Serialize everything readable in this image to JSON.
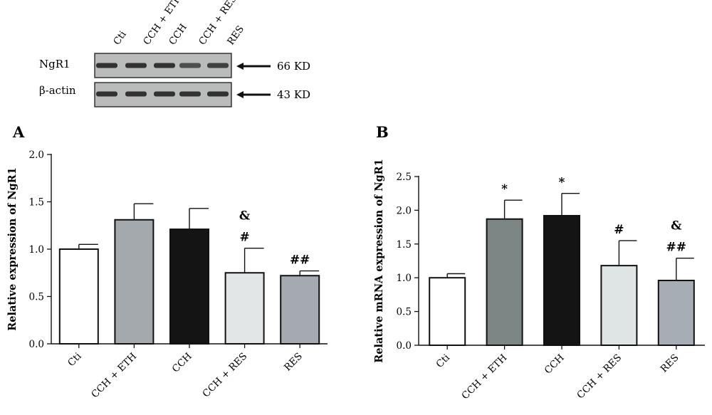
{
  "blot": {
    "lanes": [
      "Cti",
      "CCH + ETH",
      "CCH",
      "CCH + RES",
      "RES"
    ],
    "rows": [
      {
        "label": "NgR1",
        "size": "66 KD"
      },
      {
        "label": "β-actin",
        "size": "43 KD"
      }
    ],
    "band_intensity": {
      "NgR1": [
        1.0,
        1.0,
        1.0,
        0.6,
        0.8
      ],
      "β-actin": [
        1.0,
        1.0,
        1.0,
        1.0,
        1.0
      ]
    }
  },
  "chart_data": [
    {
      "type": "bar",
      "panel": "A",
      "categories": [
        "Cti",
        "CCH + ETH",
        "CCH",
        "CCH + RES",
        "RES"
      ],
      "values": [
        1.0,
        1.31,
        1.21,
        0.75,
        0.72
      ],
      "errors": [
        0.05,
        0.17,
        0.22,
        0.26,
        0.05
      ],
      "bar_colors": [
        "#ffffff",
        "#a4a9ae",
        "#141414",
        "#e2e6e6",
        "#a5aab0"
      ],
      "annotations": [
        [],
        [],
        [],
        [
          "&",
          "#"
        ],
        [
          "##"
        ]
      ],
      "xlabel": "",
      "ylabel": "Relative expression of NgR1",
      "ylim": [
        0,
        2.0
      ],
      "yticks": [
        "0.0",
        "0.5",
        "1.0",
        "1.5",
        "2.0"
      ],
      "grid": false
    },
    {
      "type": "bar",
      "panel": "B",
      "categories": [
        "Cti",
        "CCH + ETH",
        "CCH",
        "CCH + RES",
        "RES"
      ],
      "values": [
        1.0,
        1.87,
        1.92,
        1.18,
        0.96
      ],
      "errors": [
        0.06,
        0.28,
        0.33,
        0.37,
        0.33
      ],
      "bar_colors": [
        "#ffffff",
        "#7c8685",
        "#141414",
        "#dfe5e4",
        "#a7adb5"
      ],
      "annotations": [
        [],
        [
          "*"
        ],
        [
          "*"
        ],
        [
          "#"
        ],
        [
          "&",
          "##"
        ]
      ],
      "xlabel": "",
      "ylabel": "Relative mRNA expression of NgR1",
      "ylim": [
        0,
        2.5
      ],
      "yticks": [
        "0.0",
        "0.5",
        "1.0",
        "1.5",
        "2.0",
        "2.5"
      ],
      "grid": false
    }
  ]
}
